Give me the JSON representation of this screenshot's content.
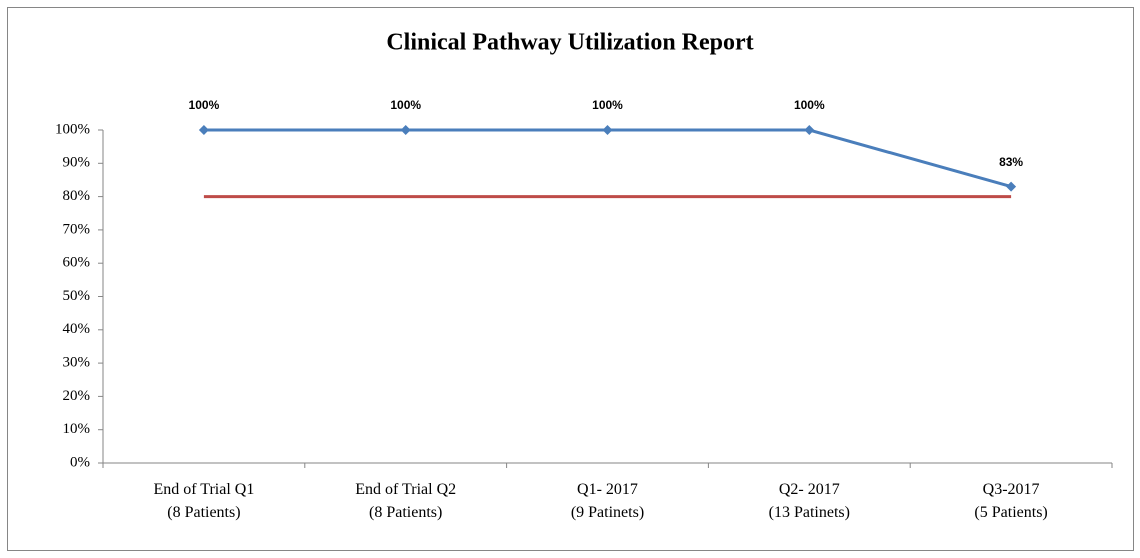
{
  "chart_data": {
    "type": "line",
    "title": "Clinical Pathway Utilization Report",
    "categories": [
      "End of Trial Q1\n(8 Patients)",
      "End of Trial Q2\n(8 Patients)",
      "Q1- 2017\n(9 Patinets)",
      "Q2- 2017\n(13 Patinets)",
      "Q3-2017\n(5 Patients)"
    ],
    "series": [
      {
        "color": "#4a7ebb",
        "marker": "diamond",
        "values": [
          100,
          100,
          100,
          100,
          83
        ],
        "value_labels": [
          "100%",
          "100%",
          "100%",
          "100%",
          "83%"
        ]
      },
      {
        "color": "#be4b48",
        "values": [
          80,
          80,
          80,
          80,
          80
        ]
      }
    ],
    "ylim": [
      0,
      100
    ],
    "yticks": [
      {
        "value": 0,
        "label": "0%"
      },
      {
        "value": 10,
        "label": "10%"
      },
      {
        "value": 20,
        "label": "20%"
      },
      {
        "value": 30,
        "label": "30%"
      },
      {
        "value": 40,
        "label": "40%"
      },
      {
        "value": 50,
        "label": "50%"
      },
      {
        "value": 60,
        "label": "60%"
      },
      {
        "value": 70,
        "label": "70%"
      },
      {
        "value": 80,
        "label": "80%"
      },
      {
        "value": 90,
        "label": "90%"
      },
      {
        "value": 100,
        "label": "100%"
      }
    ],
    "grid": false
  }
}
